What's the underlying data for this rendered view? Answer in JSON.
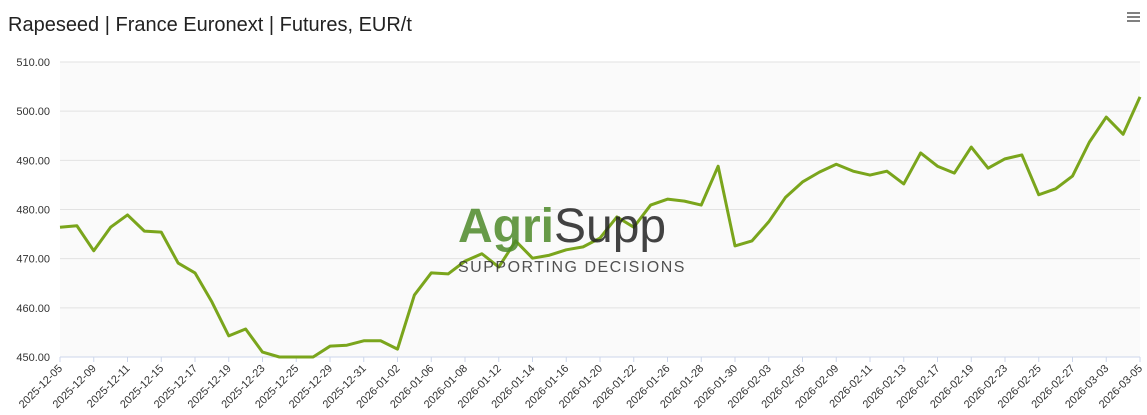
{
  "chart_data": {
    "type": "line",
    "title": "Rapeseed | France Euronext | Futures, EUR/t",
    "watermark": {
      "brand_accent": "Agri",
      "brand_rest": "Supp",
      "tagline": "SUPPORTING DECISIONS"
    },
    "categories": [
      "2025-12-05",
      null,
      "2025-12-09",
      null,
      "2025-12-11",
      null,
      "2025-12-15",
      null,
      "2025-12-17",
      null,
      "2025-12-19",
      null,
      "2025-12-23",
      null,
      "2025-12-25",
      null,
      "2025-12-29",
      null,
      "2025-12-31",
      null,
      "2026-01-02",
      null,
      "2026-01-06",
      null,
      "2026-01-08",
      null,
      "2026-01-12",
      null,
      "2026-01-14",
      null,
      "2026-01-16",
      null,
      "2026-01-20",
      null,
      "2026-01-22",
      null,
      "2026-01-26",
      null,
      "2026-01-28",
      null,
      "2026-01-30",
      null,
      "2026-02-03",
      null,
      "2026-02-05",
      null,
      "2026-02-09",
      null,
      "2026-02-11",
      null,
      "2026-02-13",
      null,
      "2026-02-17",
      null,
      "2026-02-19",
      null,
      "2026-02-23",
      null,
      "2026-02-25",
      null,
      "2026-02-27",
      null,
      "2026-03-03",
      null,
      "2026-03-05"
    ],
    "series": [
      {
        "name": "Rapeseed",
        "color": "#7aa51c",
        "values": [
          476.4,
          476.7,
          471.6,
          476.4,
          478.9,
          475.6,
          475.4,
          469.1,
          467.1,
          461.2,
          454.3,
          455.7,
          451.0,
          450.0,
          450.0,
          450.0,
          452.2,
          452.4,
          453.3,
          453.3,
          451.6,
          462.6,
          467.1,
          466.9,
          469.5,
          471.0,
          468.3,
          473.6,
          470.1,
          470.7,
          471.8,
          472.4,
          474.2,
          478.5,
          476.4,
          480.9,
          482.1,
          481.7,
          480.9,
          488.8,
          472.6,
          473.6,
          477.5,
          482.5,
          485.6,
          487.6,
          489.2,
          487.8,
          487.0,
          487.8,
          485.2,
          491.5,
          488.8,
          487.4,
          492.7,
          488.4,
          490.3,
          491.1,
          483.0,
          484.2,
          486.8,
          493.7,
          498.8,
          495.3,
          502.9
        ]
      }
    ],
    "ylim": [
      450,
      510
    ],
    "yticks": [
      {
        "value": 450,
        "label": "450.00"
      },
      {
        "value": 460,
        "label": "460.00"
      },
      {
        "value": 470,
        "label": "470.00"
      },
      {
        "value": 480,
        "label": "480.00"
      },
      {
        "value": 490,
        "label": "490.00"
      },
      {
        "value": 500,
        "label": "500.00"
      },
      {
        "value": 510,
        "label": "510.00"
      }
    ],
    "grid": true
  }
}
